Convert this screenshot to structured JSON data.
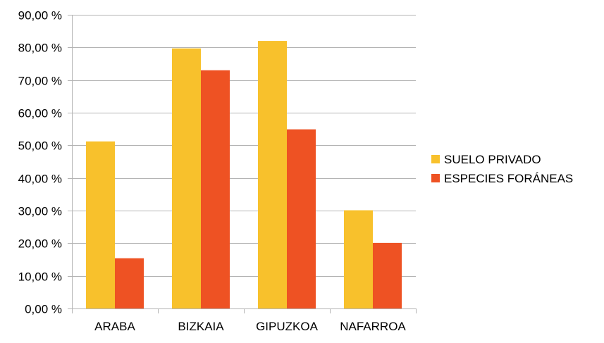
{
  "chart_data": {
    "type": "bar",
    "title": "",
    "xlabel": "",
    "ylabel": "",
    "categories": [
      "ARABA",
      "BIZKAIA",
      "GIPUZKOA",
      "NAFARROA"
    ],
    "series": [
      {
        "name": "SUELO PRIVADO",
        "color": "#F8C12C",
        "values": [
          51.2,
          79.7,
          82.0,
          30.1
        ]
      },
      {
        "name": "ESPECIES FORÁNEAS",
        "color": "#EE5223",
        "values": [
          15.4,
          73.0,
          54.9,
          20.1
        ]
      }
    ],
    "ylim": [
      0,
      90
    ],
    "yticks": [
      0,
      10,
      20,
      30,
      40,
      50,
      60,
      70,
      80,
      90
    ],
    "ytick_labels": [
      "0,00 %",
      "10,00 %",
      "20,00 %",
      "30,00 %",
      "40,00 %",
      "50,00 %",
      "60,00 %",
      "70,00 %",
      "80,00 %",
      "90,00 %"
    ],
    "grid": true,
    "legend_position": "right",
    "gridline_color": "#B3B3B3",
    "axis_color": "#B3B3B3"
  }
}
